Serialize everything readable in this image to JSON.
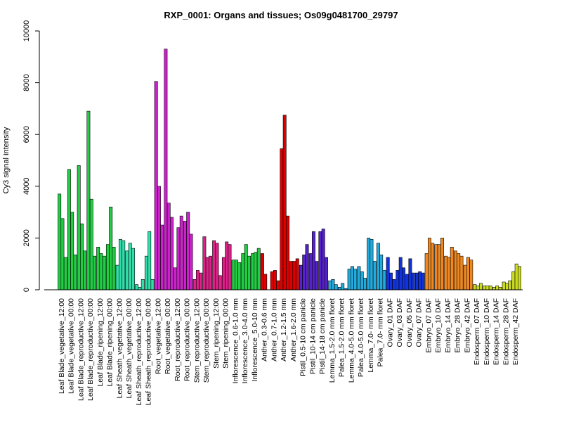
{
  "chart_data": {
    "type": "bar",
    "title": "RXP_0001: Organs and tissues; Os09g0481700_29797",
    "xlabel": "",
    "ylabel": "Cy3 signal intensity",
    "ylim": [
      0,
      10000
    ],
    "yticks": [
      0,
      2000,
      4000,
      6000,
      8000,
      10000
    ],
    "grid": false,
    "legend": "none",
    "groups": [
      {
        "label": "Leaf Blade_vegetative_12:00",
        "color": "#22cc44",
        "values": [
          3700,
          2750,
          1250
        ]
      },
      {
        "label": "Leaf Blade_vegetative_00:00",
        "color": "#22cc44",
        "values": [
          4650,
          3000,
          1350
        ]
      },
      {
        "label": "Leaf Blade_reproductive_12:00",
        "color": "#22cc44",
        "values": [
          4800,
          2550,
          1500
        ]
      },
      {
        "label": "Leaf Blade_reproductive_00:00",
        "color": "#22cc44",
        "values": [
          6900,
          3500,
          1300
        ]
      },
      {
        "label": "Leaf Blade_ripening_12:00",
        "color": "#22cc44",
        "values": [
          1650,
          1400,
          1300
        ]
      },
      {
        "label": "Leaf Blade_ripening_00:00",
        "color": "#22cc44",
        "values": [
          1750,
          3200,
          1650
        ]
      },
      {
        "label": "Leaf Sheath_vegetative_12:00",
        "color": "#33ddaa",
        "values": [
          950,
          1950,
          1900
        ]
      },
      {
        "label": "Leaf Sheath_vegetative_00:00",
        "color": "#33ddaa",
        "values": [
          1500,
          1800,
          1600
        ]
      },
      {
        "label": "Leaf Sheath_reproductive_12:00",
        "color": "#33ddaa",
        "values": [
          200,
          100,
          400
        ]
      },
      {
        "label": "Leaf Sheath_reproductive_00:00",
        "color": "#33ddaa",
        "values": [
          1300,
          2250,
          400
        ]
      },
      {
        "label": "Root_vegetative_12:00",
        "color": "#cc22cc",
        "values": [
          8050,
          4000,
          2500
        ]
      },
      {
        "label": "Root_vegetative_00:00",
        "color": "#cc22cc",
        "values": [
          9300,
          3350,
          2800
        ]
      },
      {
        "label": "Root_reproductive_12:00",
        "color": "#cc22cc",
        "values": [
          850,
          2400,
          2850
        ]
      },
      {
        "label": "Root_reproductive_00:00",
        "color": "#cc22cc",
        "values": [
          2650,
          3000,
          2150
        ]
      },
      {
        "label": "Stem_reproductive_12:00",
        "color": "#dd2288",
        "values": [
          400,
          750,
          650
        ]
      },
      {
        "label": "Stem_reproductive_00:00",
        "color": "#dd2288",
        "values": [
          2050,
          1250,
          1300
        ]
      },
      {
        "label": "Stem_ripening_12:00",
        "color": "#dd2288",
        "values": [
          1900,
          1800,
          550
        ]
      },
      {
        "label": "Stem_ripening_00:00",
        "color": "#dd2288",
        "values": [
          1250,
          1850,
          1750
        ]
      },
      {
        "label": "Inflorescence_0.6-1.0 mm",
        "color": "#22cc44",
        "values": [
          1150,
          1150,
          1050
        ]
      },
      {
        "label": "Inflorescence_3.0-4.0 mm",
        "color": "#22cc44",
        "values": [
          1400,
          1750,
          1300
        ]
      },
      {
        "label": "Inflorescence_5.0-10 mm",
        "color": "#22cc44",
        "values": [
          1400,
          1450,
          1600
        ]
      },
      {
        "label": "Anther_0.3-0.6 mm",
        "color": "#dd0000",
        "values": [
          1400,
          600,
          0
        ]
      },
      {
        "label": "Anther_0.7-1.0 mm",
        "color": "#dd0000",
        "values": [
          700,
          750,
          350
        ]
      },
      {
        "label": "Anther_1.2-1.5 mm",
        "color": "#dd0000",
        "values": [
          5450,
          6750,
          2850
        ]
      },
      {
        "label": "Anther_1.6-2.0 mm",
        "color": "#dd0000",
        "values": [
          1100,
          1100,
          1200
        ]
      },
      {
        "label": "Pistil_0.5-10 cm panicle",
        "color": "#5522cc",
        "values": [
          950,
          1350,
          1750
        ]
      },
      {
        "label": "Pistil_10-14 cm panicle",
        "color": "#5522cc",
        "values": [
          1400,
          2250,
          1100
        ]
      },
      {
        "label": "Pistil_14-18 cm panicle",
        "color": "#5522cc",
        "values": [
          2250,
          2350,
          1250
        ]
      },
      {
        "label": "Lemma_1.5-2.0 mm floret",
        "color": "#22aadd",
        "values": [
          350,
          400,
          200
        ]
      },
      {
        "label": "Palea_1.5-2.0 mm floret",
        "color": "#22aadd",
        "values": [
          100,
          250,
          50
        ]
      },
      {
        "label": "Lemma_4.0-5.0 mm floret",
        "color": "#22aadd",
        "values": [
          800,
          900,
          800
        ]
      },
      {
        "label": "Palea_4.0-5.0 mm floret",
        "color": "#22aadd",
        "values": [
          900,
          700,
          450
        ]
      },
      {
        "label": "Lemma_7.0- mm floret",
        "color": "#22aadd",
        "values": [
          2000,
          1950,
          1100
        ]
      },
      {
        "label": "Palea_7.0- mm floret",
        "color": "#22aadd",
        "values": [
          1800,
          1350,
          750
        ]
      },
      {
        "label": "Ovary_01 DAF",
        "color": "#1133dd",
        "values": [
          1250,
          650,
          400
        ]
      },
      {
        "label": "Ovary_03 DAF",
        "color": "#1133dd",
        "values": [
          750,
          1250,
          850
        ]
      },
      {
        "label": "Ovary_05 DAF",
        "color": "#1133dd",
        "values": [
          600,
          1200,
          650
        ]
      },
      {
        "label": "Ovary_07 DAF",
        "color": "#1133dd",
        "values": [
          650,
          700,
          650
        ]
      },
      {
        "label": "Embryo_07 DAF",
        "color": "#ee8822",
        "values": [
          1400,
          2000,
          1800
        ]
      },
      {
        "label": "Embryo_10 DAF",
        "color": "#ee8822",
        "values": [
          1750,
          1750,
          2000
        ]
      },
      {
        "label": "Embryo_14 DAF",
        "color": "#ee8822",
        "values": [
          1300,
          1250,
          1650
        ]
      },
      {
        "label": "Embryo_28 DAF",
        "color": "#ee8822",
        "values": [
          1500,
          1400,
          1300
        ]
      },
      {
        "label": "Embryo_42 DAF",
        "color": "#ee8822",
        "values": [
          950,
          1250,
          1150
        ]
      },
      {
        "label": "Endosperm_07 DAF",
        "color": "#ccdd22",
        "values": [
          200,
          150,
          250
        ]
      },
      {
        "label": "Endosperm_10 DAF",
        "color": "#ccdd22",
        "values": [
          150,
          150,
          150
        ]
      },
      {
        "label": "Endosperm_14 DAF",
        "color": "#ccdd22",
        "values": [
          100,
          150,
          100
        ]
      },
      {
        "label": "Endosperm_28 DAF",
        "color": "#ccdd22",
        "values": [
          300,
          250,
          350
        ]
      },
      {
        "label": "Endosperm_42 DAF",
        "color": "#ccdd22",
        "values": [
          700,
          1000,
          900
        ]
      }
    ]
  }
}
